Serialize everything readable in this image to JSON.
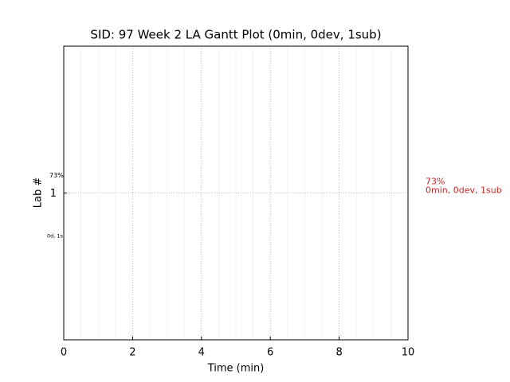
{
  "chart_data": {
    "type": "gantt",
    "title": "SID: 97 Week 2 LA Gantt Plot (0min, 0dev, 1sub)",
    "xlabel": "Time (min)",
    "ylabel": "Lab #",
    "xlim": [
      0,
      10
    ],
    "xticks": [
      0,
      2,
      4,
      6,
      8,
      10
    ],
    "xminor_ticks": [
      0.5,
      1,
      1.5,
      2.5,
      3,
      3.5,
      4.5,
      5,
      5.5,
      6.5,
      7,
      7.5,
      8.5,
      9,
      9.5
    ],
    "ylim": [
      0,
      2
    ],
    "yticks": [
      1
    ],
    "grid": true,
    "annotations": {
      "left_top": "73%",
      "left_bottom": "0d, 1s",
      "right": [
        "73%",
        "0min, 0dev, 1sub"
      ],
      "right_color": "#c62828"
    }
  }
}
